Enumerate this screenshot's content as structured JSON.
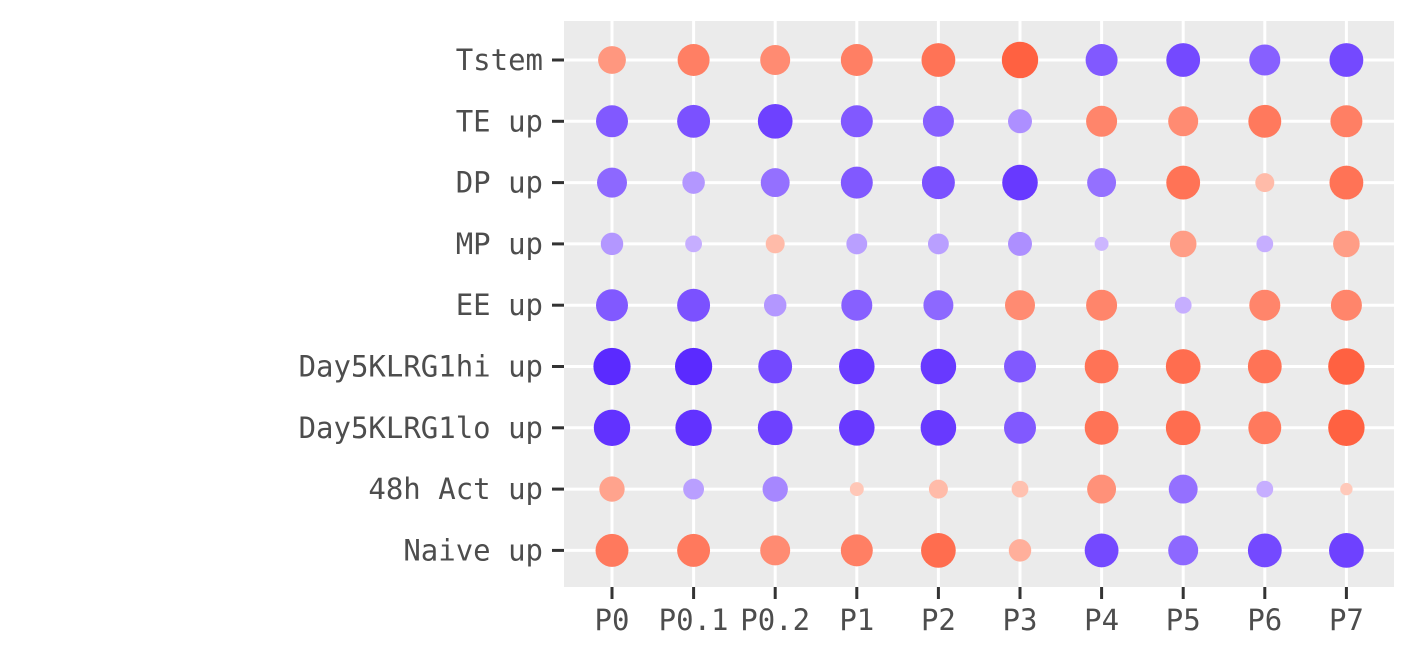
{
  "chart_data": {
    "type": "dot",
    "x_categories": [
      "P0",
      "P0.1",
      "P0.2",
      "P1",
      "P2",
      "P3",
      "P4",
      "P5",
      "P6",
      "P7"
    ],
    "y_categories": [
      "Tstem",
      "TE up",
      "DP up",
      "MP up",
      "EE up",
      "Day5KLRG1hi up",
      "Day5KLRG1lo up",
      "48h Act up",
      "Naive up"
    ],
    "legend": "none",
    "grid": true,
    "colors": {
      "panel_background": "#ebebeb",
      "grid_line": "#ffffff",
      "tick_text": "#4d4d4d",
      "tick_mark": "#333333",
      "positive_extreme": "#ff5533",
      "negative_extreme": "#5522ff"
    },
    "scales": {
      "color": "diverging: negative values blue-purple, positive values orange-red, intensity by magnitude",
      "size": "dot area grows with absolute value"
    },
    "values": [
      [
        0.45,
        0.65,
        0.55,
        0.65,
        0.75,
        0.9,
        -0.65,
        -0.75,
        -0.6,
        -0.75
      ],
      [
        -0.65,
        -0.7,
        -0.8,
        -0.65,
        -0.6,
        -0.3,
        0.6,
        0.55,
        0.7,
        0.65
      ],
      [
        -0.55,
        -0.25,
        -0.5,
        -0.65,
        -0.7,
        -0.85,
        -0.5,
        0.75,
        0.15,
        0.75
      ],
      [
        -0.25,
        -0.1,
        0.15,
        -0.2,
        -0.2,
        -0.3,
        -0.05,
        0.4,
        -0.1,
        0.4
      ],
      [
        -0.65,
        -0.7,
        -0.25,
        -0.6,
        -0.55,
        0.55,
        0.6,
        -0.1,
        0.6,
        0.6
      ],
      [
        -0.95,
        -0.95,
        -0.75,
        -0.85,
        -0.85,
        -0.65,
        0.75,
        0.8,
        0.75,
        0.9
      ],
      [
        -0.9,
        -0.9,
        -0.8,
        -0.85,
        -0.85,
        -0.65,
        0.75,
        0.8,
        0.7,
        0.9
      ],
      [
        0.35,
        -0.2,
        -0.35,
        0.05,
        0.15,
        0.1,
        0.5,
        -0.5,
        -0.1,
        0.03
      ],
      [
        0.7,
        0.7,
        0.55,
        0.65,
        0.8,
        0.25,
        -0.75,
        -0.55,
        -0.75,
        -0.8
      ]
    ]
  }
}
